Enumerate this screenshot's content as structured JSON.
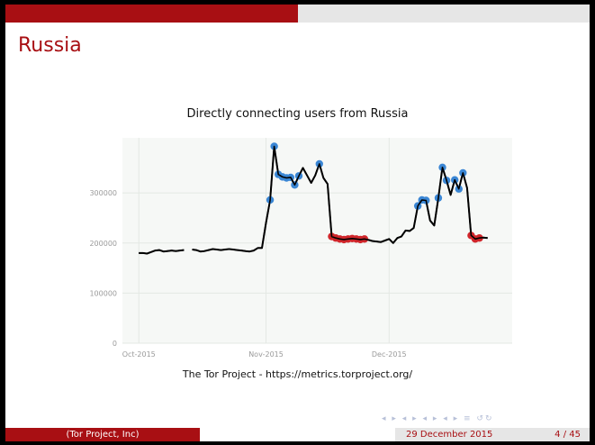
{
  "slide": {
    "title": "Russia",
    "caption": "The Tor Project - https://metrics.torproject.org/",
    "navigation_symbols": "◂ ▸ ◂ ▸ ◂ ▸ ◂ ▸ ≡ ↺↻"
  },
  "footer": {
    "left": "(Tor Project, Inc)",
    "date": "29 December 2015",
    "page": "4 / 45"
  },
  "colors": {
    "accent": "#a80f13",
    "bar_grey": "#e6e6e6",
    "line": "#000000",
    "high_point": "#3a86d4",
    "low_point": "#d0262b",
    "panel": "#f6f8f6"
  },
  "chart_data": {
    "type": "line",
    "title": "Directly connecting users from Russia",
    "xlabel": "",
    "ylabel": "",
    "x_ticks": [
      "Oct-2015",
      "Nov-2015",
      "Dec-2015"
    ],
    "x_tick_dates": [
      "2015-10-01",
      "2015-11-01",
      "2015-12-01"
    ],
    "xlim": [
      "2015-09-27",
      "2015-12-31"
    ],
    "ylim": [
      0,
      410000
    ],
    "y_ticks": [
      0,
      100000,
      200000,
      300000
    ],
    "y_tick_labels": [
      "0",
      "100000",
      "200000",
      "300000"
    ],
    "grid": true,
    "series": [
      {
        "values": [
          [
            "2015-10-01",
            180000
          ],
          [
            "2015-10-02",
            180000
          ],
          [
            "2015-10-03",
            179000
          ],
          [
            "2015-10-04",
            182000
          ],
          [
            "2015-10-05",
            185000
          ],
          [
            "2015-10-06",
            186000
          ],
          [
            "2015-10-07",
            183000
          ],
          [
            "2015-10-08",
            184000
          ],
          [
            "2015-10-09",
            185000
          ],
          [
            "2015-10-10",
            184000
          ],
          [
            "2015-10-11",
            185000
          ],
          [
            "2015-10-12",
            186000
          ],
          [
            "2015-10-13",
            null
          ],
          [
            "2015-10-14",
            187000
          ],
          [
            "2015-10-15",
            186000
          ],
          [
            "2015-10-16",
            183000
          ],
          [
            "2015-10-17",
            184000
          ],
          [
            "2015-10-18",
            186000
          ],
          [
            "2015-10-19",
            188000
          ],
          [
            "2015-10-20",
            187000
          ],
          [
            "2015-10-21",
            186000
          ],
          [
            "2015-10-22",
            187000
          ],
          [
            "2015-10-23",
            188000
          ],
          [
            "2015-10-24",
            187000
          ],
          [
            "2015-10-25",
            186000
          ],
          [
            "2015-10-26",
            185000
          ],
          [
            "2015-10-27",
            184000
          ],
          [
            "2015-10-28",
            183000
          ],
          [
            "2015-10-29",
            185000
          ],
          [
            "2015-10-30",
            190000
          ],
          [
            "2015-10-31",
            190000
          ],
          [
            "2015-11-01",
            240000
          ],
          [
            "2015-11-02",
            286000
          ],
          [
            "2015-11-03",
            393000
          ],
          [
            "2015-11-04",
            337000
          ],
          [
            "2015-11-05",
            332000
          ],
          [
            "2015-11-06",
            330000
          ],
          [
            "2015-11-07",
            331000
          ],
          [
            "2015-11-08",
            316000
          ],
          [
            "2015-11-09",
            334000
          ],
          [
            "2015-11-10",
            350000
          ],
          [
            "2015-11-11",
            335000
          ],
          [
            "2015-11-12",
            320000
          ],
          [
            "2015-11-13",
            335000
          ],
          [
            "2015-11-14",
            358000
          ],
          [
            "2015-11-15",
            330000
          ],
          [
            "2015-11-16",
            318000
          ],
          [
            "2015-11-17",
            213000
          ],
          [
            "2015-11-18",
            210000
          ],
          [
            "2015-11-19",
            208000
          ],
          [
            "2015-11-20",
            207000
          ],
          [
            "2015-11-21",
            208000
          ],
          [
            "2015-11-22",
            209000
          ],
          [
            "2015-11-23",
            208000
          ],
          [
            "2015-11-24",
            207000
          ],
          [
            "2015-11-25",
            208000
          ],
          [
            "2015-11-26",
            206000
          ],
          [
            "2015-11-27",
            204000
          ],
          [
            "2015-11-28",
            203000
          ],
          [
            "2015-11-29",
            202000
          ],
          [
            "2015-11-30",
            205000
          ],
          [
            "2015-12-01",
            208000
          ],
          [
            "2015-12-02",
            200000
          ],
          [
            "2015-12-03",
            210000
          ],
          [
            "2015-12-04",
            213000
          ],
          [
            "2015-12-05",
            225000
          ],
          [
            "2015-12-06",
            224000
          ],
          [
            "2015-12-07",
            230000
          ],
          [
            "2015-12-08",
            274000
          ],
          [
            "2015-12-09",
            286000
          ],
          [
            "2015-12-10",
            285000
          ],
          [
            "2015-12-11",
            245000
          ],
          [
            "2015-12-12",
            235000
          ],
          [
            "2015-12-13",
            290000
          ],
          [
            "2015-12-14",
            351000
          ],
          [
            "2015-12-15",
            325000
          ],
          [
            "2015-12-16",
            296000
          ],
          [
            "2015-12-17",
            326000
          ],
          [
            "2015-12-18",
            308000
          ],
          [
            "2015-12-19",
            340000
          ],
          [
            "2015-12-20",
            310000
          ],
          [
            "2015-12-21",
            215000
          ],
          [
            "2015-12-22",
            208000
          ],
          [
            "2015-12-23",
            210000
          ],
          [
            "2015-12-24",
            211000
          ],
          [
            "2015-12-25",
            210000
          ]
        ]
      }
    ],
    "highlighted_high_points": [
      [
        "2015-11-02",
        286000
      ],
      [
        "2015-11-03",
        393000
      ],
      [
        "2015-11-04",
        337000
      ],
      [
        "2015-11-05",
        332000
      ],
      [
        "2015-11-06",
        330000
      ],
      [
        "2015-11-07",
        331000
      ],
      [
        "2015-11-08",
        316000
      ],
      [
        "2015-11-09",
        334000
      ],
      [
        "2015-11-14",
        358000
      ],
      [
        "2015-12-08",
        274000
      ],
      [
        "2015-12-09",
        286000
      ],
      [
        "2015-12-10",
        285000
      ],
      [
        "2015-12-13",
        290000
      ],
      [
        "2015-12-14",
        351000
      ],
      [
        "2015-12-15",
        325000
      ],
      [
        "2015-12-17",
        326000
      ],
      [
        "2015-12-18",
        308000
      ],
      [
        "2015-12-19",
        340000
      ]
    ],
    "highlighted_low_points": [
      [
        "2015-11-17",
        213000
      ],
      [
        "2015-11-18",
        210000
      ],
      [
        "2015-11-19",
        208000
      ],
      [
        "2015-11-20",
        207000
      ],
      [
        "2015-11-21",
        208000
      ],
      [
        "2015-11-22",
        209000
      ],
      [
        "2015-11-23",
        208000
      ],
      [
        "2015-11-24",
        207000
      ],
      [
        "2015-11-25",
        208000
      ],
      [
        "2015-12-21",
        215000
      ],
      [
        "2015-12-22",
        208000
      ],
      [
        "2015-12-23",
        210000
      ]
    ]
  }
}
